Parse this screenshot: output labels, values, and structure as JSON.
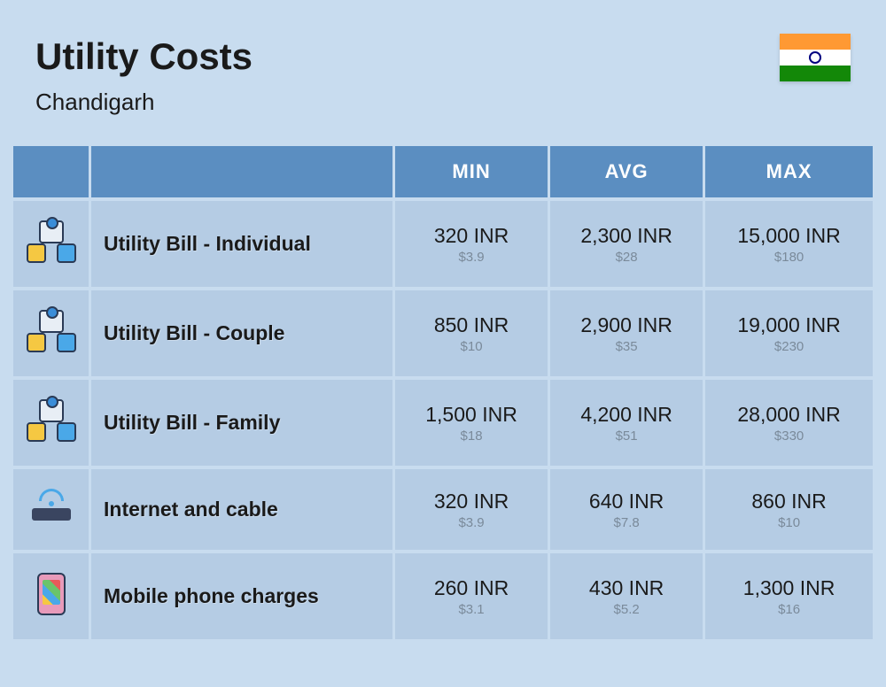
{
  "header": {
    "title": "Utility Costs",
    "subtitle": "Chandigarh"
  },
  "flag": {
    "saffron": "#ff9933",
    "white": "#ffffff",
    "green": "#138808",
    "chakra": "#000080"
  },
  "colors": {
    "page_bg": "#c8dcef",
    "header_bg": "#5b8ec1",
    "header_text": "#ffffff",
    "cell_bg": "#b5cce4",
    "primary_text": "#1a1a1a",
    "secondary_text": "#7a8a9a"
  },
  "columns": [
    "MIN",
    "AVG",
    "MAX"
  ],
  "rows": [
    {
      "icon": "utility-icon",
      "label": "Utility Bill - Individual",
      "min": {
        "primary": "320 INR",
        "secondary": "$3.9"
      },
      "avg": {
        "primary": "2,300 INR",
        "secondary": "$28"
      },
      "max": {
        "primary": "15,000 INR",
        "secondary": "$180"
      }
    },
    {
      "icon": "utility-icon",
      "label": "Utility Bill - Couple",
      "min": {
        "primary": "850 INR",
        "secondary": "$10"
      },
      "avg": {
        "primary": "2,900 INR",
        "secondary": "$35"
      },
      "max": {
        "primary": "19,000 INR",
        "secondary": "$230"
      }
    },
    {
      "icon": "utility-icon",
      "label": "Utility Bill - Family",
      "min": {
        "primary": "1,500 INR",
        "secondary": "$18"
      },
      "avg": {
        "primary": "4,200 INR",
        "secondary": "$51"
      },
      "max": {
        "primary": "28,000 INR",
        "secondary": "$330"
      }
    },
    {
      "icon": "router-icon",
      "label": "Internet and cable",
      "min": {
        "primary": "320 INR",
        "secondary": "$3.9"
      },
      "avg": {
        "primary": "640 INR",
        "secondary": "$7.8"
      },
      "max": {
        "primary": "860 INR",
        "secondary": "$10"
      }
    },
    {
      "icon": "phone-icon",
      "label": "Mobile phone charges",
      "min": {
        "primary": "260 INR",
        "secondary": "$3.1"
      },
      "avg": {
        "primary": "430 INR",
        "secondary": "$5.2"
      },
      "max": {
        "primary": "1,300 INR",
        "secondary": "$16"
      }
    }
  ]
}
